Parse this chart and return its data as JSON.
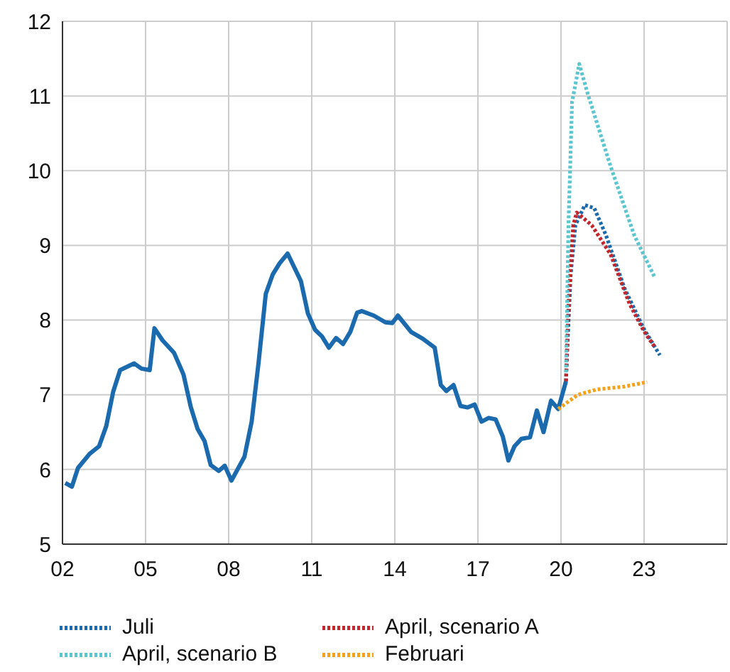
{
  "chart_data": {
    "type": "line",
    "xlim": [
      2002,
      2026
    ],
    "ylim": [
      5,
      12
    ],
    "xticks": [
      {
        "value": 2002,
        "label": "02"
      },
      {
        "value": 2005,
        "label": "05"
      },
      {
        "value": 2008,
        "label": "08"
      },
      {
        "value": 2011,
        "label": "11"
      },
      {
        "value": 2014,
        "label": "14"
      },
      {
        "value": 2017,
        "label": "17"
      },
      {
        "value": 2020,
        "label": "20"
      },
      {
        "value": 2023,
        "label": "23"
      }
    ],
    "yticks": [
      5,
      6,
      7,
      8,
      9,
      10,
      11,
      12
    ],
    "grid": true,
    "legend": "bottom",
    "marker": "none",
    "series": [
      {
        "color": "#1a6aad",
        "line_style": "solid",
        "x": [
          2002.1,
          2002.34,
          2002.56,
          2002.98,
          2003.32,
          2003.58,
          2003.83,
          2004.08,
          2004.59,
          2004.85,
          2005.15,
          2005.32,
          2005.61,
          2006.03,
          2006.37,
          2006.63,
          2006.88,
          2007.13,
          2007.35,
          2007.64,
          2007.86,
          2008.1,
          2008.32,
          2008.57,
          2008.83,
          2009.08,
          2009.34,
          2009.59,
          2009.84,
          2010.13,
          2010.61,
          2010.86,
          2011.12,
          2011.37,
          2011.62,
          2011.88,
          2012.13,
          2012.39,
          2012.64,
          2012.81,
          2013.24,
          2013.66,
          2013.91,
          2014.11,
          2014.59,
          2015.01,
          2015.44,
          2015.66,
          2015.86,
          2016.12,
          2016.37,
          2016.63,
          2016.88,
          2017.13,
          2017.39,
          2017.64,
          2017.9,
          2018.1,
          2018.32,
          2018.57,
          2018.88,
          2019.13,
          2019.37,
          2019.64,
          2019.9,
          2020.18
        ],
        "values": [
          5.82,
          5.77,
          6.02,
          6.21,
          6.31,
          6.58,
          7.04,
          7.33,
          7.42,
          7.35,
          7.33,
          7.89,
          7.73,
          7.56,
          7.27,
          6.84,
          6.54,
          6.38,
          6.06,
          5.98,
          6.05,
          5.85,
          6.0,
          6.17,
          6.64,
          7.43,
          8.35,
          8.61,
          8.76,
          8.89,
          8.52,
          8.09,
          7.87,
          7.78,
          7.63,
          7.76,
          7.68,
          7.84,
          8.1,
          8.12,
          8.06,
          7.97,
          7.96,
          8.06,
          7.84,
          7.75,
          7.63,
          7.13,
          7.05,
          7.13,
          6.85,
          6.83,
          6.87,
          6.64,
          6.69,
          6.67,
          6.44,
          6.12,
          6.31,
          6.41,
          6.43,
          6.79,
          6.5,
          6.92,
          6.81,
          7.18
        ]
      },
      {
        "name": "Juli",
        "color": "#1a6aad",
        "line_style": "dotted",
        "x": [
          2020.18,
          2020.23,
          2020.35,
          2020.52,
          2020.86,
          2021.2,
          2021.62,
          2022.3,
          2022.98,
          2023.57
        ],
        "values": [
          7.18,
          7.63,
          8.61,
          9.27,
          9.54,
          9.5,
          9.14,
          8.42,
          7.89,
          7.53
        ]
      },
      {
        "name": "April, scenario A",
        "color": "#c0282d",
        "line_style": "dotted",
        "x": [
          2020.18,
          2020.27,
          2020.44,
          2020.57,
          2021.11,
          2021.79,
          2022.47,
          2022.98,
          2023.4
        ],
        "values": [
          7.18,
          8.22,
          9.27,
          9.44,
          9.27,
          8.88,
          8.22,
          7.86,
          7.63
        ]
      },
      {
        "name": "April, scenario B",
        "color": "#5bc5d0",
        "line_style": "dotted",
        "x": [
          2020.18,
          2020.27,
          2020.4,
          2020.66,
          2020.95,
          2021.79,
          2022.64,
          2023.4
        ],
        "values": [
          7.3,
          9.27,
          10.92,
          11.43,
          11.05,
          10.06,
          9.14,
          8.56
        ]
      },
      {
        "name": "Februari",
        "color": "#f5a21a",
        "line_style": "dotted",
        "x": [
          2019.9,
          2020.61,
          2021.28,
          2022.3,
          2023.11
        ],
        "values": [
          6.81,
          7.0,
          7.07,
          7.11,
          7.17
        ]
      }
    ]
  }
}
